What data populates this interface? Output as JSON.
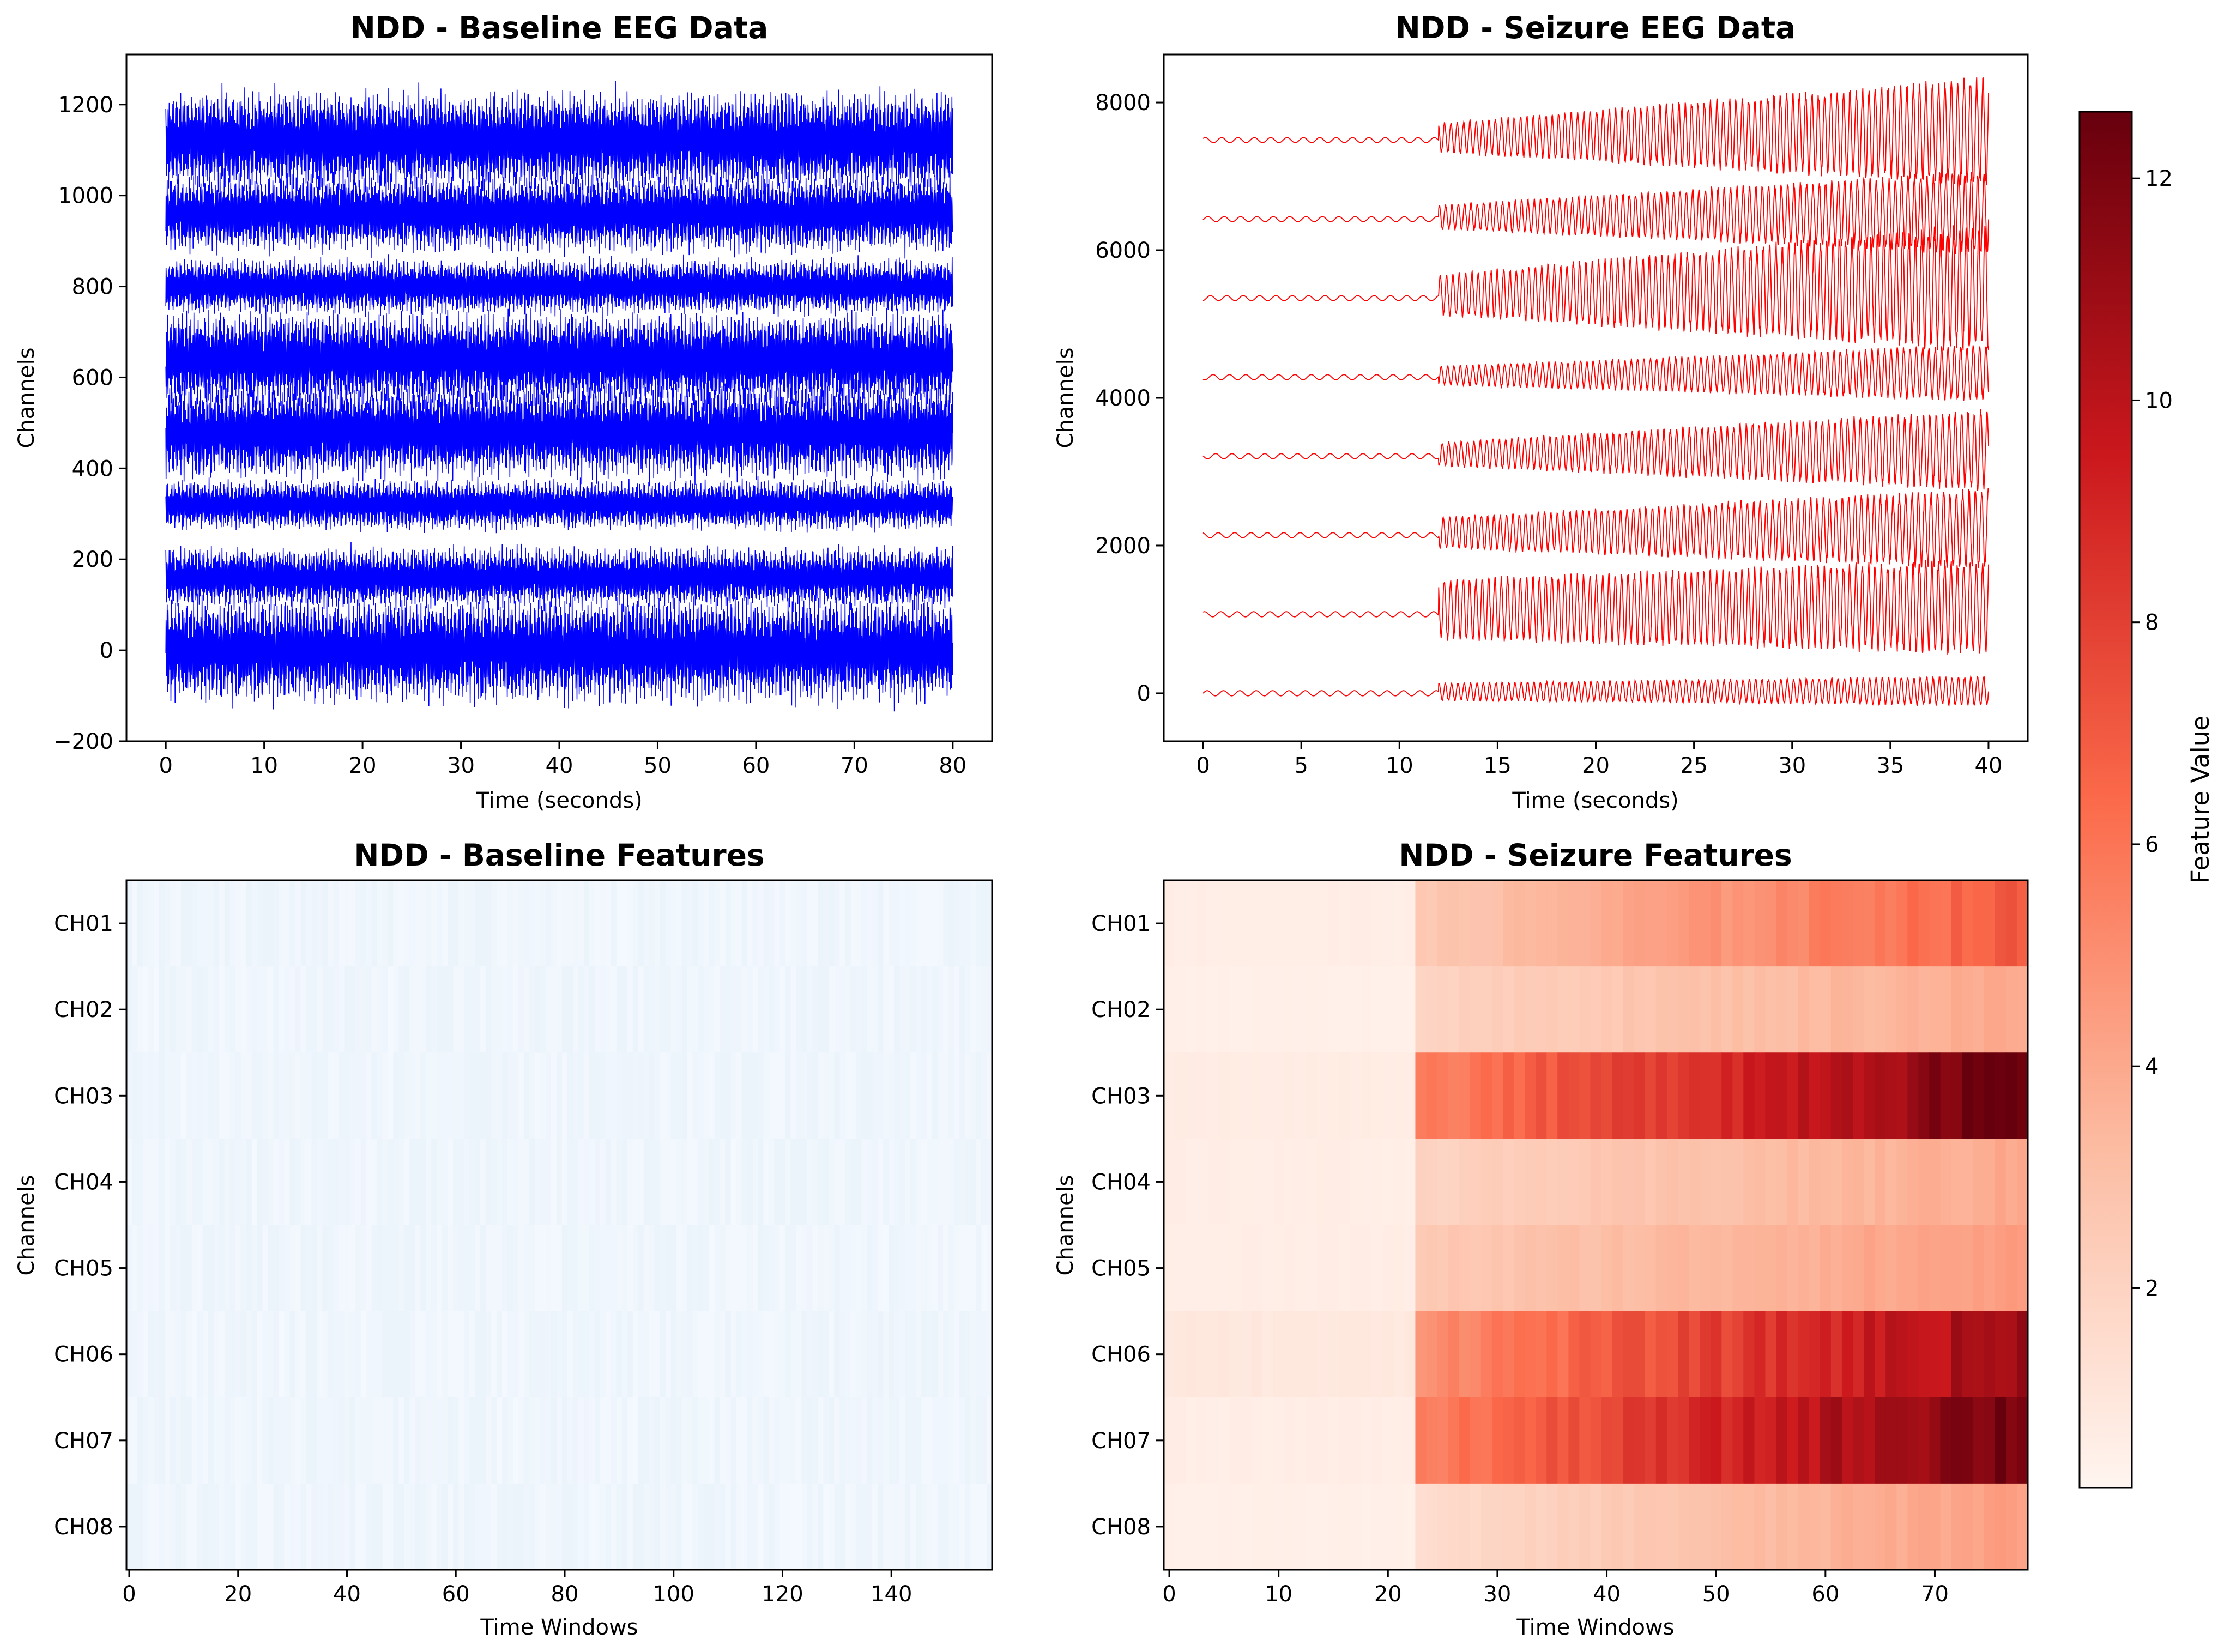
{
  "colors": {
    "baseline_trace": "#0000ff",
    "seizure_trace": "#ff0000",
    "baseline_map": [
      "#f7fbff",
      "#deebf7"
    ],
    "seizure_map": [
      "#fff5f0",
      "#fcbba1",
      "#fb6a4a",
      "#cb181d",
      "#67000d"
    ]
  },
  "chart_data": [
    {
      "type": "line",
      "title": "NDD - Baseline EEG Data",
      "xlabel": "Time (seconds)",
      "ylabel": "Channels",
      "xlim": [
        -4,
        84
      ],
      "ylim": [
        -200,
        1310
      ],
      "xticks": [
        "0",
        "10",
        "20",
        "30",
        "40",
        "50",
        "60",
        "70",
        "80"
      ],
      "yticks": [
        "−200",
        "0",
        "200",
        "400",
        "600",
        "800",
        "1000",
        "1200"
      ],
      "series": [
        {
          "offset": 0,
          "amplitude": 95,
          "x": [
            0,
            80
          ]
        },
        {
          "offset": 160,
          "amplitude": 55,
          "x": [
            0,
            80
          ]
        },
        {
          "offset": 320,
          "amplitude": 45,
          "x": [
            0,
            80
          ]
        },
        {
          "offset": 480,
          "amplitude": 85,
          "x": [
            0,
            80
          ]
        },
        {
          "offset": 640,
          "amplitude": 85,
          "x": [
            0,
            80
          ]
        },
        {
          "offset": 800,
          "amplitude": 50,
          "x": [
            0,
            80
          ]
        },
        {
          "offset": 960,
          "amplitude": 70,
          "x": [
            0,
            80
          ]
        },
        {
          "offset": 1120,
          "amplitude": 90,
          "x": [
            0,
            80
          ]
        }
      ]
    },
    {
      "type": "line",
      "title": "NDD - Seizure EEG Data",
      "xlabel": "Time (seconds)",
      "ylabel": "Channels",
      "xlim": [
        -2,
        42
      ],
      "ylim": [
        -650,
        8650
      ],
      "seizure_onset": 12,
      "xticks": [
        "0",
        "5",
        "10",
        "15",
        "20",
        "25",
        "30",
        "35",
        "40"
      ],
      "yticks": [
        "0",
        "2000",
        "4000",
        "6000",
        "8000"
      ],
      "series": [
        {
          "offset": 0,
          "pre_amplitude": 35,
          "start_amplitude": 130,
          "end_amplitude": 220
        },
        {
          "offset": 1070,
          "pre_amplitude": 35,
          "start_amplitude": 450,
          "end_amplitude": 700
        },
        {
          "offset": 2140,
          "pre_amplitude": 35,
          "start_amplitude": 230,
          "end_amplitude": 600
        },
        {
          "offset": 3210,
          "pre_amplitude": 35,
          "start_amplitude": 180,
          "end_amplitude": 600
        },
        {
          "offset": 4280,
          "pre_amplitude": 35,
          "start_amplitude": 140,
          "end_amplitude": 420
        },
        {
          "offset": 5350,
          "pre_amplitude": 35,
          "start_amplitude": 300,
          "end_amplitude": 950
        },
        {
          "offset": 6420,
          "pre_amplitude": 35,
          "start_amplitude": 180,
          "end_amplitude": 620
        },
        {
          "offset": 7490,
          "pre_amplitude": 35,
          "start_amplitude": 220,
          "end_amplitude": 800
        }
      ]
    },
    {
      "type": "heatmap",
      "title": "NDD - Baseline Features",
      "xlabel": "Time Windows",
      "ylabel": "Channels",
      "categories": [
        "CH01",
        "CH02",
        "CH03",
        "CH04",
        "CH05",
        "CH06",
        "CH07",
        "CH08"
      ],
      "xlim": [
        -0.5,
        158.5
      ],
      "xticks": [
        0,
        20,
        40,
        60,
        80,
        100,
        120,
        140
      ],
      "n_windows": 159,
      "value_range": [
        0.03,
        0.12
      ]
    },
    {
      "type": "heatmap",
      "title": "NDD - Seizure Features",
      "xlabel": "Time Windows",
      "ylabel": "Channels",
      "categories": [
        "CH01",
        "CH02",
        "CH03",
        "CH04",
        "CH05",
        "CH06",
        "CH07",
        "CH08"
      ],
      "xlim": [
        -0.5,
        78.5
      ],
      "xticks": [
        0,
        10,
        20,
        30,
        40,
        50,
        60,
        70
      ],
      "n_windows": 79,
      "seizure_onset_window": 23,
      "pre_onset_level": [
        0.6,
        0.5,
        0.7,
        0.6,
        0.6,
        0.9,
        0.6,
        0.5
      ],
      "post_onset_start": [
        2.5,
        2.0,
        5.5,
        2.0,
        2.5,
        5.0,
        5.5,
        1.5
      ],
      "post_onset_end": [
        7.0,
        4.0,
        12.5,
        4.0,
        4.5,
        11.0,
        12.5,
        4.5
      ],
      "colorbar": {
        "label": "Feature Value",
        "range": [
          0.2,
          12.6
        ],
        "ticks": [
          2,
          4,
          6,
          8,
          10,
          12
        ]
      }
    }
  ]
}
